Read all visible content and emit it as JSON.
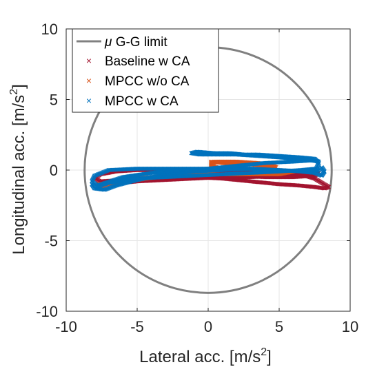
{
  "chart_data": {
    "type": "scatter",
    "title": "",
    "xlabel": "Lateral acc. [m/s",
    "xlabel_sup": "2",
    "xlabel_end": "]",
    "ylabel": "Longitudinal acc. [m/s",
    "ylabel_sup": "2",
    "ylabel_end": "]",
    "xlim": [
      -10,
      10
    ],
    "ylim": [
      -10,
      10
    ],
    "xticks": [
      -10,
      -5,
      0,
      5,
      10
    ],
    "yticks": [
      -10,
      -5,
      0,
      5,
      10
    ],
    "grid": true,
    "legend_position": "top-left",
    "limit_circle": {
      "name_symbol": "μ",
      "name": " G-G limit",
      "radius": 8.7,
      "color": "#808080"
    },
    "series": [
      {
        "name": "Baseline w CA",
        "marker": "×",
        "color": "#A2142F",
        "path": [
          [
            -7.4,
            -1.0
          ],
          [
            -6.5,
            -0.8
          ],
          [
            -5,
            -0.6
          ],
          [
            -3,
            -0.5
          ],
          [
            -1,
            -0.5
          ],
          [
            1,
            -0.6
          ],
          [
            3,
            -0.8
          ],
          [
            5,
            -1.0
          ],
          [
            6.5,
            -1.1
          ],
          [
            7.5,
            -1.2
          ],
          [
            8.2,
            -1.3
          ],
          [
            8.5,
            -1.2
          ],
          [
            8.0,
            -0.9
          ],
          [
            7.5,
            -0.6
          ],
          [
            6.5,
            -0.3
          ],
          [
            5,
            -0.1
          ],
          [
            3,
            0.0
          ],
          [
            1,
            -0.1
          ],
          [
            -1,
            -0.1
          ],
          [
            -3,
            0.0
          ],
          [
            -5,
            0.0
          ],
          [
            -6.5,
            -0.1
          ],
          [
            -7.6,
            -0.3
          ],
          [
            -8.0,
            -0.6
          ],
          [
            -7.6,
            -0.8
          ],
          [
            -6,
            -0.7
          ],
          [
            -4,
            -0.6
          ],
          [
            -2,
            -0.4
          ],
          [
            0,
            -0.3
          ],
          [
            2,
            -0.4
          ],
          [
            4,
            -0.5
          ],
          [
            6,
            -0.5
          ],
          [
            7.5,
            -0.4
          ],
          [
            7.8,
            -0.2
          ],
          [
            7.0,
            -0.3
          ],
          [
            5,
            -0.4
          ],
          [
            3,
            -0.5
          ],
          [
            1,
            -0.5
          ],
          [
            -1,
            -0.6
          ],
          [
            -3,
            -0.7
          ],
          [
            -5,
            -0.8
          ],
          [
            -7,
            -1.0
          ]
        ]
      },
      {
        "name": "MPCC  w/o CA",
        "marker": "×",
        "color": "#D95319",
        "path": [
          [
            -7.8,
            -1.0
          ],
          [
            -6.5,
            -0.9
          ],
          [
            -5,
            -0.7
          ],
          [
            -3,
            -0.4
          ],
          [
            -1,
            -0.2
          ],
          [
            0.2,
            0.0
          ],
          [
            0.2,
            0.4
          ],
          [
            0.2,
            0.6
          ],
          [
            1,
            0.5
          ],
          [
            2,
            0.4
          ],
          [
            3,
            0.4
          ],
          [
            4,
            0.3
          ],
          [
            4.8,
            0.2
          ],
          [
            4.6,
            0.3
          ],
          [
            3.5,
            0.5
          ],
          [
            2,
            0.6
          ],
          [
            0.5,
            0.6
          ],
          [
            0.2,
            0.3
          ],
          [
            1,
            0.1
          ],
          [
            3,
            0.1
          ],
          [
            5,
            0.0
          ],
          [
            6,
            -0.1
          ],
          [
            5,
            -0.3
          ],
          [
            3,
            -0.3
          ],
          [
            1,
            -0.3
          ],
          [
            -1,
            -0.3
          ],
          [
            -3,
            -0.4
          ],
          [
            -5,
            -0.6
          ],
          [
            -6.5,
            -0.8
          ],
          [
            -7.5,
            -1.2
          ],
          [
            -7.0,
            -1.0
          ],
          [
            -5.5,
            -0.8
          ]
        ]
      },
      {
        "name": "MPCC w CA",
        "marker": "×",
        "color": "#0072BD",
        "path": [
          [
            -8.2,
            -1.0
          ],
          [
            -8.0,
            -1.3
          ],
          [
            -7.3,
            -1.4
          ],
          [
            -6.5,
            -1.1
          ],
          [
            -5,
            -0.7
          ],
          [
            -3,
            -0.3
          ],
          [
            -1,
            -0.1
          ],
          [
            1,
            0.0
          ],
          [
            3,
            0.1
          ],
          [
            5,
            0.0
          ],
          [
            6.5,
            -0.1
          ],
          [
            7.5,
            -0.2
          ],
          [
            8.0,
            -0.4
          ],
          [
            8.2,
            -0.1
          ],
          [
            8.0,
            0.2
          ],
          [
            7.8,
            0.0
          ],
          [
            7,
            -0.1
          ],
          [
            5,
            0.0
          ],
          [
            3,
            0.1
          ],
          [
            1,
            0.1
          ],
          [
            -1,
            0.1
          ],
          [
            -3,
            0.1
          ],
          [
            -5,
            0.1
          ],
          [
            -7,
            0.0
          ],
          [
            -8.0,
            -0.4
          ],
          [
            -8.2,
            -0.8
          ],
          [
            -7.8,
            -1.1
          ],
          [
            -6,
            -0.5
          ],
          [
            -4,
            -0.2
          ],
          [
            -2,
            0.0
          ],
          [
            0,
            0.1
          ],
          [
            2,
            0.3
          ],
          [
            4,
            0.5
          ],
          [
            6,
            0.6
          ],
          [
            7.5,
            0.7
          ],
          [
            7.8,
            0.6
          ],
          [
            7.2,
            0.7
          ],
          [
            6,
            0.8
          ],
          [
            5,
            0.9
          ],
          [
            3.5,
            1.0
          ],
          [
            2,
            1.1
          ],
          [
            0.5,
            1.1
          ],
          [
            -0.6,
            1.1
          ],
          [
            -1.2,
            1.2
          ],
          [
            -0.8,
            1.3
          ],
          [
            0.4,
            1.2
          ],
          [
            1.5,
            1.2
          ],
          [
            2.5,
            1.1
          ],
          [
            3.5,
            1.1
          ],
          [
            5,
            1.0
          ],
          [
            6.5,
            0.9
          ],
          [
            7.5,
            0.8
          ],
          [
            7.8,
            0.5
          ],
          [
            7.6,
            0.1
          ],
          [
            6.5,
            0.0
          ],
          [
            5,
            -0.1
          ],
          [
            3,
            -0.2
          ],
          [
            1,
            -0.3
          ],
          [
            -1,
            -0.4
          ],
          [
            -3,
            -0.5
          ],
          [
            -5,
            -0.6
          ],
          [
            -7,
            -0.9
          ],
          [
            -7.9,
            -1.2
          ]
        ]
      }
    ]
  }
}
